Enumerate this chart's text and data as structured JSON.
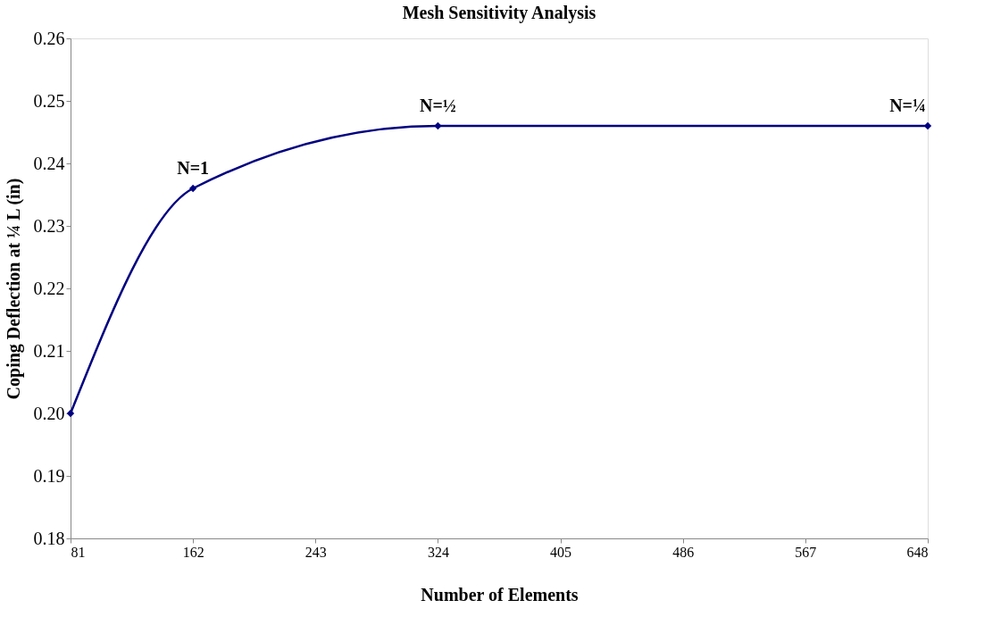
{
  "chart_data": {
    "type": "line",
    "title": "Mesh Sensitivity Analysis",
    "xlabel": "Number of Elements",
    "ylabel": "Coping Deflection at ¼ L (in)",
    "x": [
      81,
      162,
      324,
      648
    ],
    "series": [
      {
        "color": "#000080",
        "values": [
          0.2,
          0.236,
          0.246,
          0.246
        ]
      }
    ],
    "xlim": [
      81,
      648
    ],
    "xticks": [
      81,
      162,
      243,
      324,
      405,
      486,
      567,
      648
    ],
    "ylim": [
      0.18,
      0.26
    ],
    "yticks": [
      {
        "value": 0.18,
        "label": "0.18"
      },
      {
        "value": 0.19,
        "label": "0.19"
      },
      {
        "value": 0.2,
        "label": "0.20"
      },
      {
        "value": 0.21,
        "label": "0.21"
      },
      {
        "value": 0.22,
        "label": "0.22"
      },
      {
        "value": 0.23,
        "label": "0.23"
      },
      {
        "value": 0.24,
        "label": "0.24"
      },
      {
        "value": 0.25,
        "label": "0.25"
      },
      {
        "value": 0.26,
        "label": "0.26"
      }
    ],
    "annotations": [
      {
        "text": "N=1",
        "x": 162,
        "y": 0.236
      },
      {
        "text": "N=½",
        "x": 324,
        "y": 0.246
      },
      {
        "text": "N=¼",
        "x": 648,
        "y": 0.246
      }
    ],
    "grid": false,
    "marker": "diamond",
    "line_style": "solid"
  }
}
